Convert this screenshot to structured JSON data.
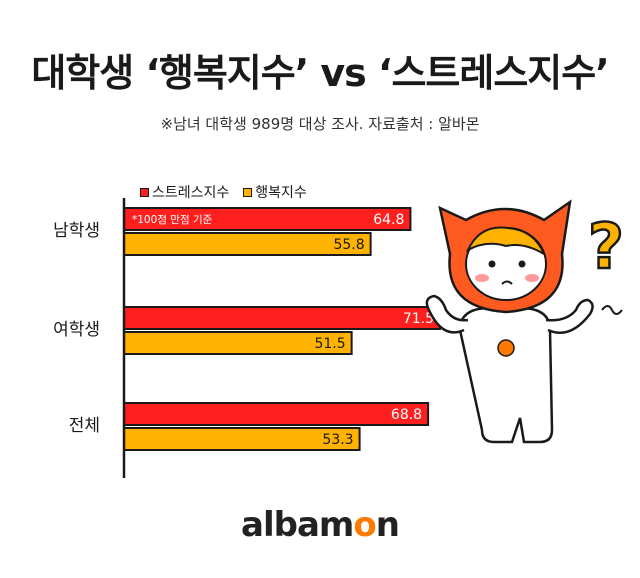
{
  "title": "대학생 ‘행복지수’ vs ‘스트레스지수’",
  "subtitle": "※남녀 대학생 989명 대상 조사. 자료출처 : 알바몬",
  "logo": {
    "prefix": "albam",
    "o": "o",
    "suffix": "n"
  },
  "colors": {
    "stress": "#ff1f1f",
    "happiness": "#ffb300",
    "outline": "#1a1a1a",
    "brand_orange": "#ff7a00"
  },
  "chart_data": {
    "type": "bar",
    "orientation": "horizontal",
    "categories": [
      "남학생",
      "여학생",
      "전체"
    ],
    "series": [
      {
        "name": "스트레스지수",
        "values": [
          64.8,
          71.5,
          68.8
        ]
      },
      {
        "name": "행복지수",
        "values": [
          55.8,
          51.5,
          53.3
        ]
      }
    ],
    "value_labels": {
      "stress": [
        "64.8",
        "71.5",
        "68.8"
      ],
      "happiness": [
        "55.8",
        "51.5",
        "53.3"
      ]
    },
    "annotation": "*100점 만점 기준",
    "xlim": [
      0,
      100
    ],
    "legend_position": "top-left",
    "grid": false
  }
}
